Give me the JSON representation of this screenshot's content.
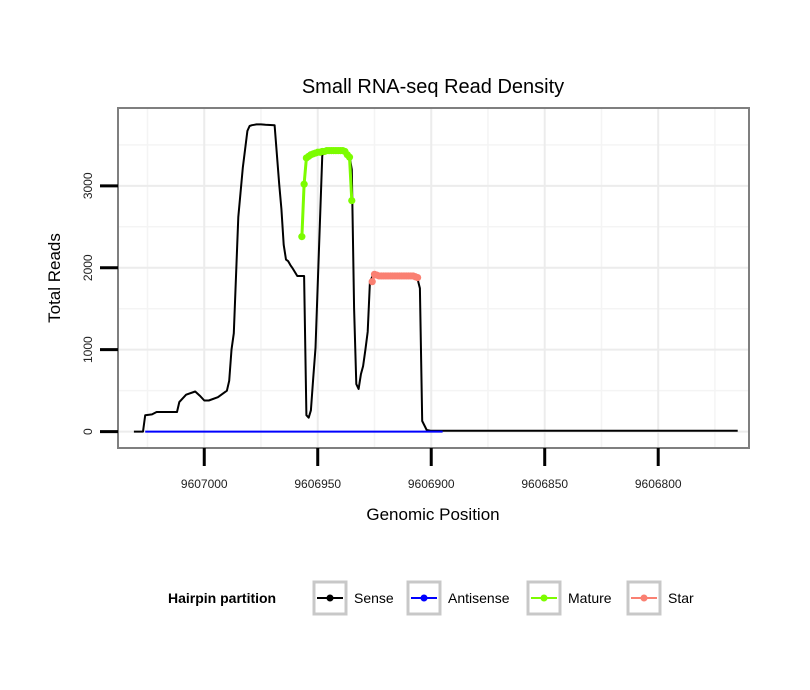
{
  "chart_data": {
    "type": "line",
    "title": "Small RNA-seq Read Density",
    "xlabel": "Genomic Position",
    "ylabel": "Total Reads",
    "x_reversed": true,
    "xlim": [
      9607038,
      9606760
    ],
    "ylim": [
      -200,
      3950
    ],
    "x_ticks": [
      9607000,
      9606950,
      9606900,
      9606850,
      9606800
    ],
    "x_tick_labels": [
      "9607000",
      "9606950",
      "9606900",
      "9606850",
      "9606800"
    ],
    "y_ticks": [
      0,
      1000,
      2000,
      3000
    ],
    "y_tick_labels": [
      "0",
      "1000",
      "2000",
      "3000"
    ],
    "grid": true,
    "legend": {
      "title": "Hairpin partition",
      "position": "bottom",
      "entries": [
        {
          "label": "Sense",
          "color": "#000000"
        },
        {
          "label": "Antisense",
          "color": "#0000ff"
        },
        {
          "label": "Mature",
          "color": "#7cfc00"
        },
        {
          "label": "Star",
          "color": "#fa8072"
        }
      ]
    },
    "series": [
      {
        "name": "Sense",
        "color": "#000000",
        "markers": false,
        "x": [
          9607031,
          9607027,
          9607026,
          9607023,
          9607021,
          9607012,
          9607011,
          9607008,
          9607004,
          9607002,
          9607000,
          9606998,
          9606994,
          9606992,
          9606990,
          9606989,
          9606988,
          9606987,
          9606985,
          9606983,
          9606981,
          9606980,
          9606979,
          9606978,
          9606977,
          9606976,
          9606975,
          9606973,
          9606969,
          9606967,
          9606966,
          9606965,
          9606964,
          9606963,
          9606962,
          9606961,
          9606959,
          9606958,
          9606956,
          9606955,
          9606954,
          9606953,
          9606952,
          9606951,
          9606948,
          9606945,
          9606944,
          9606943,
          9606942,
          9606941,
          9606940,
          9606939,
          9606938,
          9606937,
          9606936,
          9606935,
          9606934,
          9606933,
          9606932,
          9606931,
          9606930,
          9606929,
          9606928,
          9606927,
          9606926,
          9606925,
          9606924,
          9606923,
          9606922,
          9606920,
          9606918,
          9606916,
          9606914,
          9606912,
          9606910,
          9606908,
          9606906,
          9606905,
          9606904,
          9606902,
          9606900,
          9606850,
          9606800,
          9606765
        ],
        "y": [
          0,
          0,
          200,
          210,
          240,
          240,
          360,
          450,
          490,
          440,
          380,
          380,
          420,
          460,
          500,
          620,
          1000,
          1200,
          2620,
          3220,
          3670,
          3730,
          3740,
          3745,
          3750,
          3750,
          3750,
          3745,
          3740,
          3020,
          2720,
          2280,
          2100,
          2080,
          2030,
          1990,
          1900,
          1900,
          1900,
          200,
          170,
          260,
          650,
          1020,
          3380,
          3420,
          3430,
          3430,
          3430,
          3430,
          3430,
          3430,
          3430,
          3400,
          3360,
          3200,
          1500,
          580,
          520,
          700,
          800,
          1000,
          1220,
          1820,
          1890,
          1900,
          1900,
          1900,
          1900,
          1900,
          1900,
          1900,
          1900,
          1900,
          1890,
          1880,
          1860,
          1750,
          130,
          20,
          10,
          10,
          10,
          10
        ]
      },
      {
        "name": "Antisense",
        "color": "#0000ff",
        "markers": false,
        "x": [
          9607026,
          9606895
        ],
        "y": [
          0,
          0
        ]
      },
      {
        "name": "Mature",
        "color": "#7cfc00",
        "markers": true,
        "x": [
          9606957,
          9606956,
          9606955,
          9606954,
          9606953,
          9606952,
          9606951,
          9606950,
          9606949,
          9606948,
          9606947,
          9606946,
          9606945,
          9606944,
          9606943,
          9606942,
          9606941,
          9606940,
          9606939,
          9606938,
          9606937,
          9606936,
          9606935
        ],
        "y": [
          2380,
          3020,
          3340,
          3360,
          3380,
          3390,
          3400,
          3410,
          3410,
          3420,
          3420,
          3430,
          3430,
          3430,
          3430,
          3430,
          3430,
          3430,
          3430,
          3420,
          3380,
          3350,
          2820
        ]
      },
      {
        "name": "Star",
        "color": "#fa8072",
        "markers": true,
        "x": [
          9606926,
          9606925,
          9606924,
          9606923,
          9606922,
          9606921,
          9606920,
          9606919,
          9606918,
          9606917,
          9606916,
          9606915,
          9606914,
          9606913,
          9606912,
          9606911,
          9606910,
          9606909,
          9606908,
          9606907,
          9606906
        ],
        "y": [
          1830,
          1920,
          1910,
          1900,
          1900,
          1900,
          1900,
          1900,
          1900,
          1900,
          1900,
          1900,
          1900,
          1900,
          1900,
          1900,
          1900,
          1900,
          1900,
          1890,
          1880
        ]
      }
    ]
  }
}
